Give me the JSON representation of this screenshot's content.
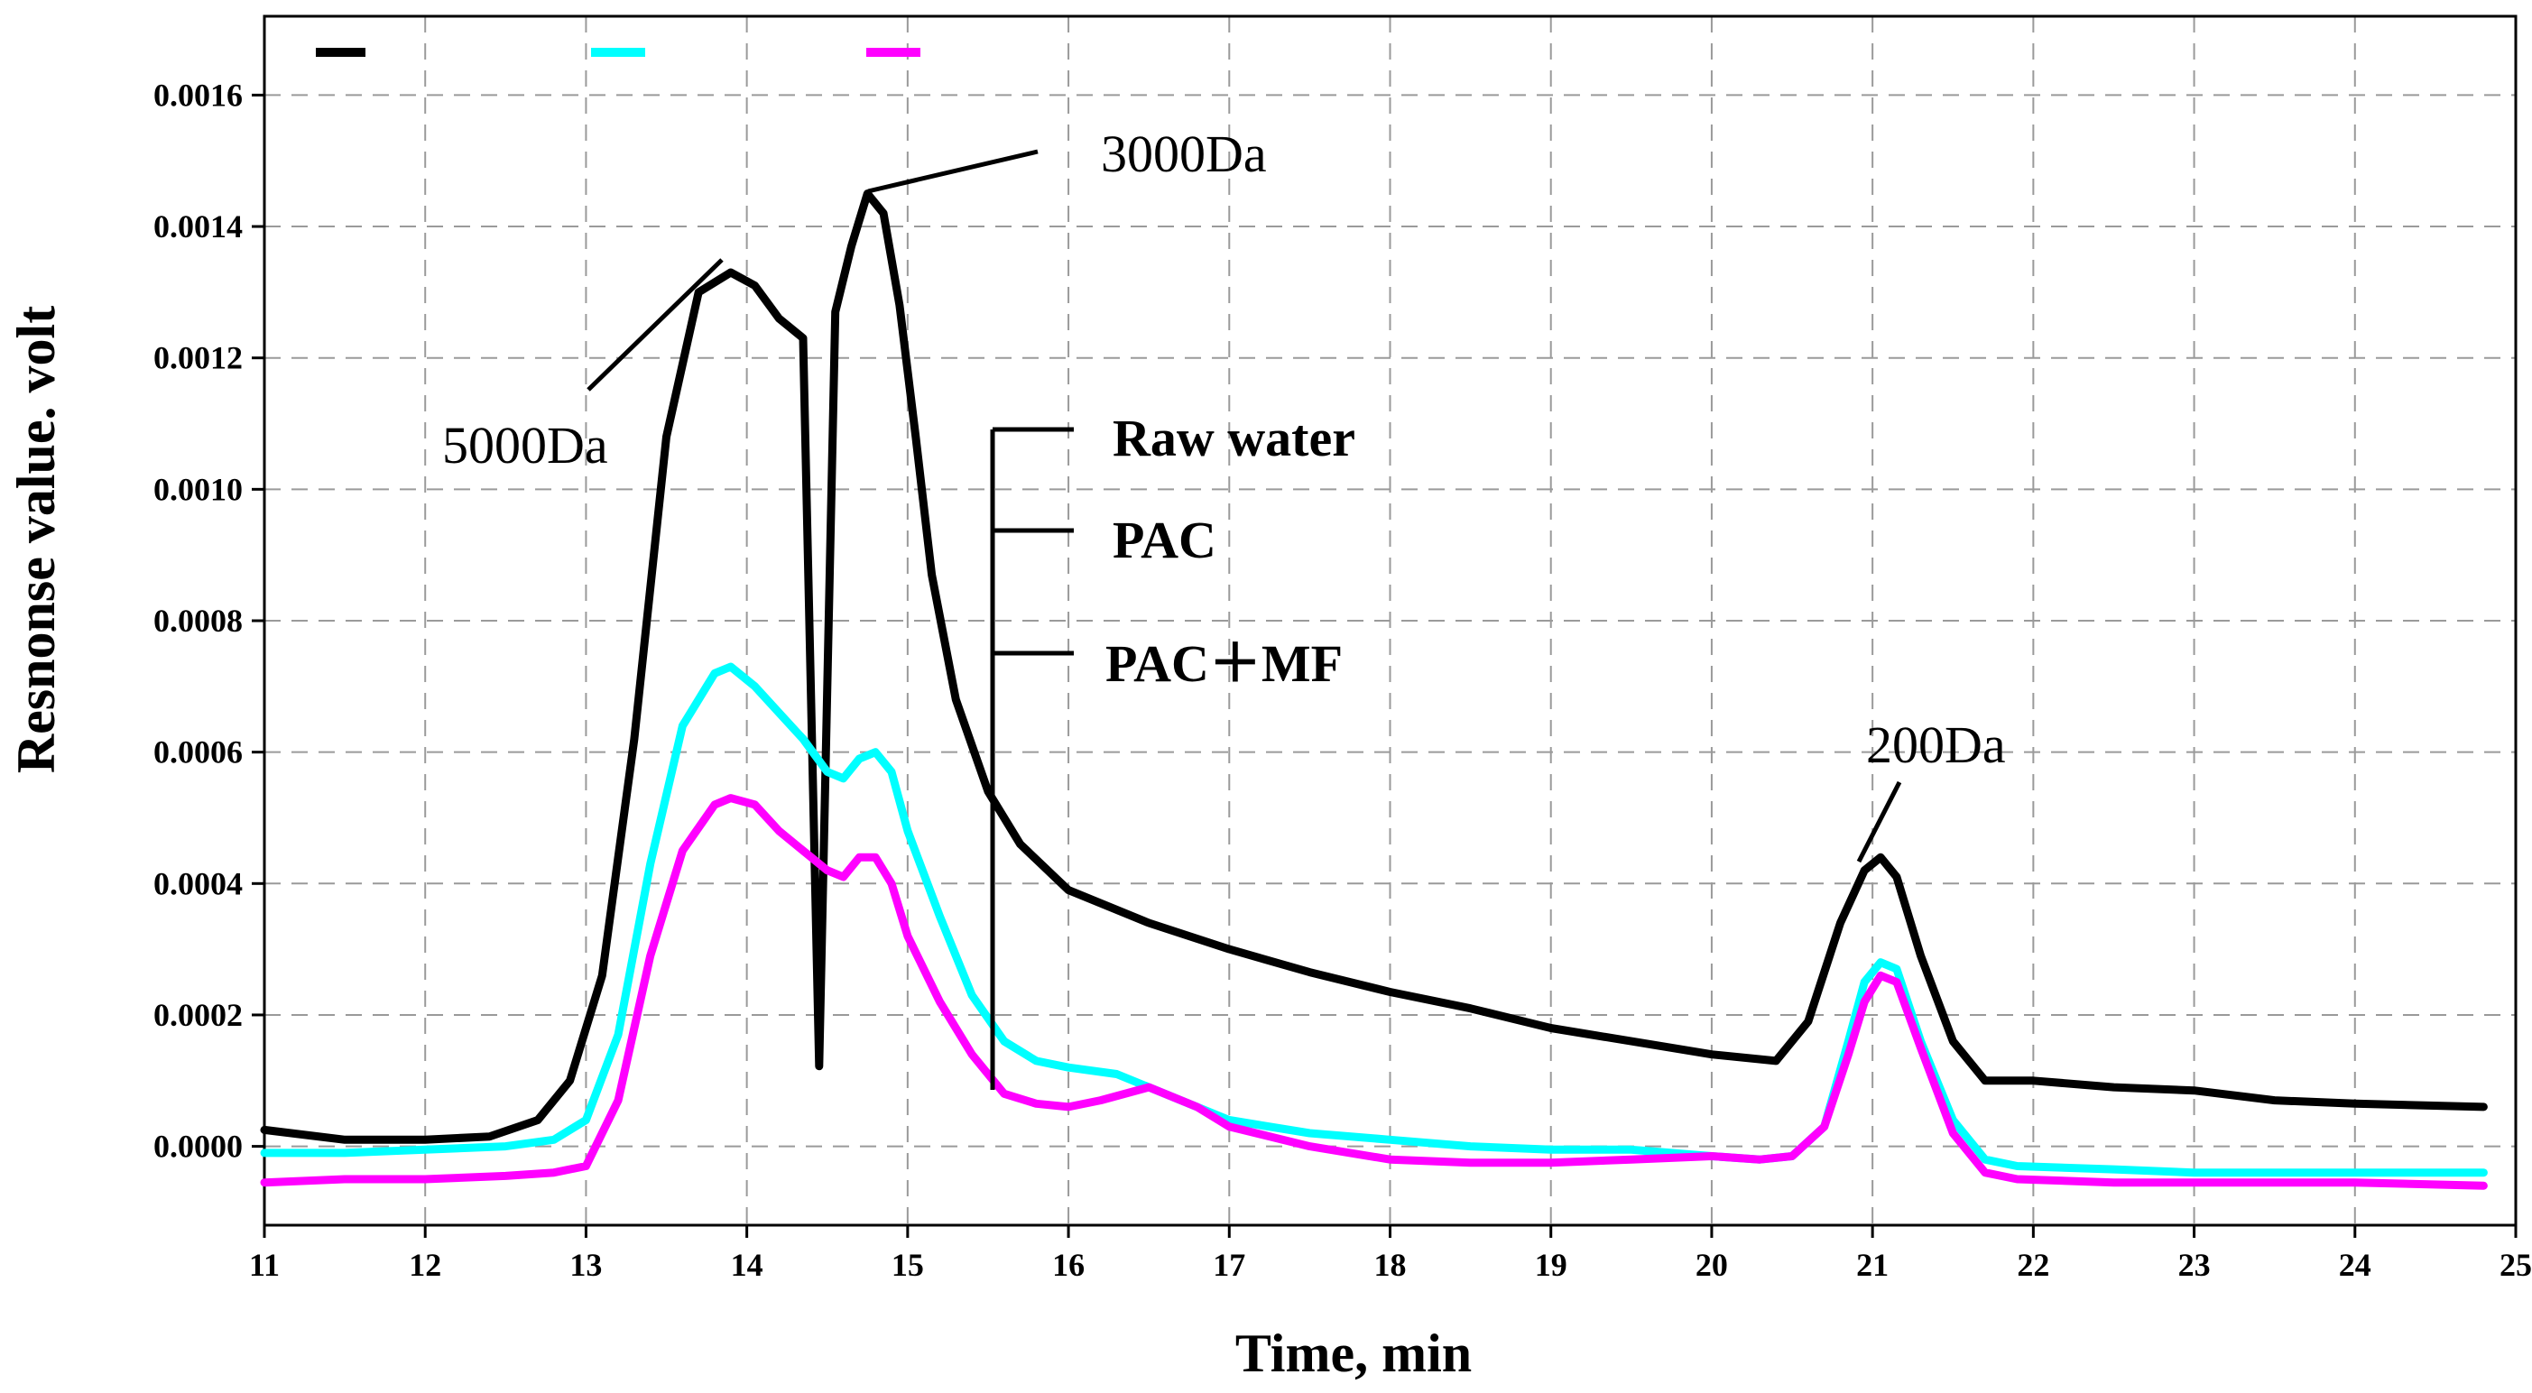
{
  "chart_data": {
    "type": "line",
    "title": "",
    "xlabel": "Time, min",
    "ylabel": "Resnonse value. volt",
    "xlim": [
      11,
      25
    ],
    "ylim": [
      -0.00012,
      0.00172
    ],
    "xticks": [
      "11",
      "12",
      "13",
      "14",
      "15",
      "16",
      "17",
      "18",
      "19",
      "20",
      "21",
      "22",
      "23",
      "24",
      "25"
    ],
    "yticks": [
      "0.0000",
      "0.0002",
      "0.0004",
      "0.0006",
      "0.0008",
      "0.0010",
      "0.0012",
      "0.0014",
      "0.0016"
    ],
    "grid": true,
    "legend_placement": "center",
    "series": [
      {
        "name": "Raw water",
        "color": "#000000",
        "x": [
          11.0,
          11.5,
          12.0,
          12.4,
          12.7,
          12.9,
          13.1,
          13.3,
          13.5,
          13.7,
          13.9,
          14.05,
          14.2,
          14.35,
          14.45,
          14.55,
          14.65,
          14.75,
          14.85,
          14.95,
          15.05,
          15.15,
          15.3,
          15.5,
          15.7,
          16.0,
          16.5,
          17.0,
          17.5,
          18.0,
          18.5,
          19.0,
          19.5,
          20.0,
          20.4,
          20.6,
          20.8,
          20.95,
          21.05,
          21.15,
          21.3,
          21.5,
          21.7,
          22.0,
          22.5,
          23.0,
          23.5,
          24.0,
          24.8
        ],
        "y": [
          2.5e-05,
          1e-05,
          1e-05,
          1.5e-05,
          4e-05,
          0.0001,
          0.00026,
          0.00062,
          0.00108,
          0.0013,
          0.00133,
          0.00131,
          0.00126,
          0.00123,
          0.000122,
          0.00127,
          0.00137,
          0.00145,
          0.00142,
          0.00128,
          0.00108,
          0.00087,
          0.00068,
          0.00054,
          0.00046,
          0.00039,
          0.00034,
          0.0003,
          0.000265,
          0.000235,
          0.00021,
          0.00018,
          0.00016,
          0.00014,
          0.00013,
          0.00019,
          0.00034,
          0.00042,
          0.00044,
          0.00041,
          0.00029,
          0.00016,
          0.0001,
          0.0001,
          9e-05,
          8.5e-05,
          7e-05,
          6.5e-05,
          6e-05
        ]
      },
      {
        "name": "PAC",
        "color": "#00ffff",
        "x": [
          11.0,
          11.5,
          12.0,
          12.5,
          12.8,
          13.0,
          13.2,
          13.4,
          13.6,
          13.8,
          13.9,
          14.05,
          14.2,
          14.35,
          14.5,
          14.6,
          14.7,
          14.8,
          14.9,
          15.0,
          15.2,
          15.4,
          15.6,
          15.8,
          16.0,
          16.3,
          16.5,
          16.8,
          17.0,
          17.5,
          18.0,
          18.5,
          19.0,
          19.5,
          20.0,
          20.3,
          20.5,
          20.7,
          20.85,
          20.95,
          21.05,
          21.15,
          21.3,
          21.5,
          21.7,
          21.9,
          22.5,
          23.0,
          24.0,
          24.8
        ],
        "y": [
          -1e-05,
          -1e-05,
          -5e-06,
          0.0,
          1e-05,
          4e-05,
          0.00017,
          0.00043,
          0.00064,
          0.00072,
          0.00073,
          0.0007,
          0.00066,
          0.00062,
          0.00057,
          0.00056,
          0.00059,
          0.0006,
          0.00057,
          0.00048,
          0.00035,
          0.00023,
          0.00016,
          0.00013,
          0.00012,
          0.00011,
          9e-05,
          6e-05,
          4e-05,
          2e-05,
          1e-05,
          0.0,
          -5e-06,
          -5e-06,
          -1.5e-05,
          -2e-05,
          -1.5e-05,
          3e-05,
          0.00016,
          0.00025,
          0.00028,
          0.00027,
          0.00016,
          4e-05,
          -2e-05,
          -3e-05,
          -3.5e-05,
          -4e-05,
          -4e-05,
          -4e-05
        ]
      },
      {
        "name": "PAC+MF",
        "color": "#ff00ff",
        "x": [
          11.0,
          11.5,
          12.0,
          12.5,
          12.8,
          13.0,
          13.2,
          13.4,
          13.6,
          13.8,
          13.9,
          14.05,
          14.2,
          14.35,
          14.5,
          14.6,
          14.7,
          14.8,
          14.9,
          15.0,
          15.2,
          15.4,
          15.6,
          15.8,
          16.0,
          16.2,
          16.5,
          16.8,
          17.0,
          17.5,
          18.0,
          18.5,
          19.0,
          19.5,
          20.0,
          20.3,
          20.5,
          20.7,
          20.85,
          20.95,
          21.05,
          21.15,
          21.3,
          21.5,
          21.7,
          21.9,
          22.5,
          23.0,
          24.0,
          24.8
        ],
        "y": [
          -5.5e-05,
          -5e-05,
          -5e-05,
          -4.5e-05,
          -4e-05,
          -3e-05,
          7e-05,
          0.00029,
          0.00045,
          0.00052,
          0.00053,
          0.00052,
          0.00048,
          0.00045,
          0.00042,
          0.00041,
          0.00044,
          0.00044,
          0.0004,
          0.00032,
          0.00022,
          0.00014,
          8e-05,
          6.5e-05,
          6e-05,
          7e-05,
          9e-05,
          6e-05,
          3e-05,
          0.0,
          -2e-05,
          -2.5e-05,
          -2.5e-05,
          -2e-05,
          -1.5e-05,
          -2e-05,
          -1.5e-05,
          3e-05,
          0.00014,
          0.00022,
          0.00026,
          0.00025,
          0.00015,
          2e-05,
          -4e-05,
          -5e-05,
          -5.5e-05,
          -5.5e-05,
          -5.5e-05,
          -6e-05
        ]
      }
    ],
    "annotations": [
      {
        "text": "5000Da",
        "x": 13.8,
        "y": 0.00133
      },
      {
        "text": "3000Da",
        "x": 14.75,
        "y": 0.00145
      },
      {
        "text": "200Da",
        "x": 21.05,
        "y": 0.00044
      }
    ],
    "legend": [
      "Raw water",
      "PAC",
      "PAC＋MF"
    ]
  }
}
